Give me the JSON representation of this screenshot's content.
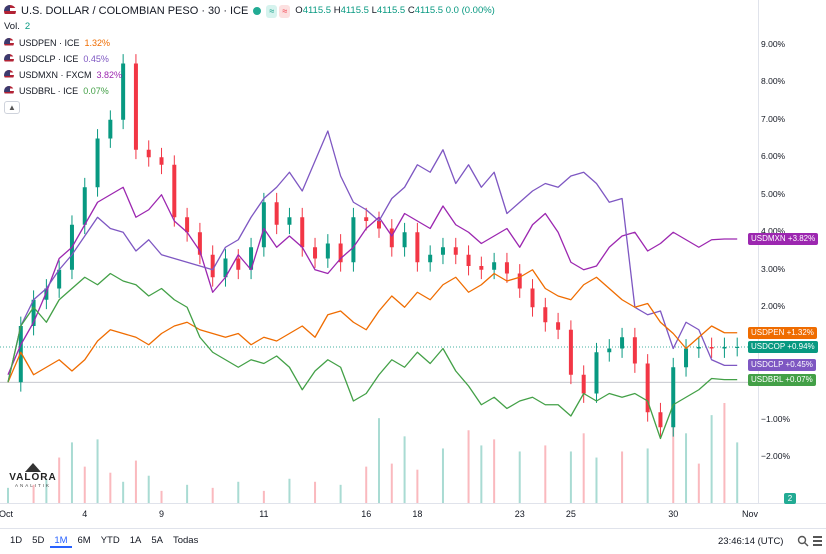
{
  "header": {
    "title": "U.S. DOLLAR / COLOMBIAN PESO · 30 · ICE",
    "ohlc": [
      {
        "k": "O",
        "v": "4115.5"
      },
      {
        "k": "H",
        "v": "4115.5"
      },
      {
        "k": "L",
        "v": "4115.5"
      },
      {
        "k": "C",
        "v": "4115.5"
      },
      {
        "k": "",
        "v": "0.0 (0.00%)"
      }
    ],
    "approx_symbol": "≈",
    "volume_label": "Vol.",
    "volume_value": "2"
  },
  "symbols": [
    {
      "label": "USDPEN · ICE",
      "change": "1.32%",
      "color": "#ef6c00"
    },
    {
      "label": "USDCLP · ICE",
      "change": "0.45%",
      "color": "#7e57c2"
    },
    {
      "label": "USDMXN · FXCM",
      "change": "3.82%",
      "color": "#9c27b0"
    },
    {
      "label": "USDBRL · ICE",
      "change": "0.07%",
      "color": "#43a047"
    }
  ],
  "icons": {
    "collapse": "chevron-up-icon",
    "search": "search-icon",
    "menu": "hamburger-menu-icon"
  },
  "logo": {
    "text": "VALORA",
    "sub": "ANALITIK"
  },
  "chart_data": {
    "type": "line",
    "title": "U.S. DOLLAR / COLOMBIAN PESO · 30 · ICE",
    "ylim": [
      -2.5,
      9.5
    ],
    "y_ticks": [
      "9.00%",
      "8.00%",
      "7.00%",
      "6.00%",
      "5.00%",
      "4.00%",
      "3.00%",
      "2.00%",
      "−1.00%",
      "−2.00%"
    ],
    "y_tick_values": [
      9,
      8,
      7,
      6,
      5,
      4,
      3,
      2,
      -1,
      -2
    ],
    "x_ticks": [
      {
        "label": "Oct",
        "t": 0
      },
      {
        "label": "4",
        "t": 3
      },
      {
        "label": "9",
        "t": 6
      },
      {
        "label": "11",
        "t": 10
      },
      {
        "label": "16",
        "t": 14
      },
      {
        "label": "18",
        "t": 16
      },
      {
        "label": "23",
        "t": 20
      },
      {
        "label": "25",
        "t": 22
      },
      {
        "label": "30",
        "t": 26
      },
      {
        "label": "Nov",
        "t": 29
      }
    ],
    "tmax": 29,
    "series": [
      {
        "name": "USDCOP",
        "color_up": "#089981",
        "color_down": "#f23645",
        "style": "candles",
        "last_label": "USDCOP",
        "last_value": "+0.94%",
        "x": [
          0,
          0.5,
          1,
          1.5,
          2,
          2.5,
          3,
          3.5,
          4,
          4.5,
          5,
          5.5,
          6,
          6.5,
          7,
          7.5,
          8,
          8.5,
          9,
          9.5,
          10,
          10.5,
          11,
          11.5,
          12,
          12.5,
          13,
          13.5,
          14,
          14.5,
          15,
          15.5,
          16,
          16.5,
          17,
          17.5,
          18,
          18.5,
          19,
          19.5,
          20,
          20.5,
          21,
          21.5,
          22,
          22.5,
          23,
          23.5,
          24,
          24.5,
          25,
          25.5,
          26,
          26.5,
          27,
          27.5,
          28,
          28.5
        ],
        "y": [
          0,
          1.5,
          2.2,
          2.5,
          3.0,
          4.2,
          5.2,
          6.5,
          7.0,
          8.5,
          6.2,
          6.0,
          5.8,
          4.4,
          4.0,
          3.4,
          2.8,
          3.3,
          3.0,
          3.6,
          4.8,
          4.2,
          4.4,
          3.6,
          3.3,
          3.7,
          3.2,
          4.4,
          4.3,
          4.1,
          3.6,
          4.0,
          3.2,
          3.4,
          3.6,
          3.4,
          3.1,
          3.0,
          3.2,
          2.9,
          2.5,
          2.0,
          1.6,
          1.4,
          0.2,
          -0.3,
          0.8,
          0.9,
          1.2,
          0.5,
          -0.8,
          -1.2,
          0.4,
          0.9,
          0.94,
          0.9,
          0.94,
          0.94
        ]
      },
      {
        "name": "USDMXN",
        "color": "#9c27b0",
        "last_label": "USDMXN",
        "last_value": "+3.82%",
        "x": [
          0,
          0.5,
          1,
          1.5,
          2,
          2.5,
          3,
          3.5,
          4,
          4.5,
          5,
          5.5,
          6,
          6.5,
          7,
          7.5,
          8,
          8.5,
          9,
          9.5,
          10,
          10.5,
          11,
          11.5,
          12,
          12.5,
          13,
          13.5,
          14,
          14.5,
          15,
          15.5,
          16,
          16.5,
          17,
          17.5,
          18,
          18.5,
          19,
          19.5,
          20,
          20.5,
          21,
          21.5,
          22,
          22.5,
          23,
          23.5,
          24,
          24.5,
          25,
          25.5,
          26,
          26.5,
          27,
          27.5,
          28,
          28.5
        ],
        "y": [
          0.2,
          1.0,
          1.6,
          2.4,
          3.3,
          3.6,
          4.2,
          4.8,
          5.0,
          5.2,
          4.4,
          4.6,
          5.0,
          4.3,
          4.0,
          3.5,
          2.4,
          2.8,
          3.4,
          3.0,
          4.1,
          3.6,
          3.9,
          3.6,
          3.0,
          2.9,
          3.3,
          3.6,
          4.1,
          4.4,
          3.9,
          4.5,
          4.3,
          4.1,
          4.7,
          4.2,
          4.0,
          3.7,
          3.9,
          4.1,
          3.6,
          4.2,
          4.5,
          4.0,
          3.2,
          3.0,
          3.1,
          3.6,
          3.9,
          4.0,
          3.5,
          3.7,
          4.0,
          3.8,
          3.6,
          3.8,
          3.82,
          3.82
        ]
      },
      {
        "name": "USDCLP",
        "color": "#7e57c2",
        "last_label": "USDCLP",
        "last_value": "+0.45%",
        "x": [
          0,
          0.5,
          1,
          1.5,
          2,
          2.5,
          3,
          3.5,
          4,
          4.5,
          5,
          5.5,
          6,
          6.5,
          7,
          7.5,
          8,
          8.5,
          9,
          9.5,
          10,
          10.5,
          11,
          11.5,
          12,
          12.5,
          13,
          13.5,
          14,
          14.5,
          15,
          15.5,
          16,
          16.5,
          17,
          17.5,
          18,
          18.5,
          19,
          19.5,
          20,
          20.5,
          21,
          21.5,
          22,
          22.5,
          23,
          23.5,
          24,
          24.5,
          25,
          25.5,
          26,
          26.5,
          27,
          27.5,
          28,
          28.5
        ],
        "y": [
          0,
          1.5,
          2.2,
          2.5,
          3.0,
          3.4,
          3.9,
          4.4,
          4.1,
          4.0,
          3.5,
          3.8,
          3.4,
          3.3,
          3.2,
          3.1,
          3.0,
          3.6,
          3.8,
          4.4,
          4.9,
          5.2,
          5.6,
          5.1,
          5.9,
          6.7,
          5.5,
          4.8,
          4.6,
          4.3,
          4.9,
          5.2,
          5.8,
          5.6,
          6.2,
          5.3,
          5.8,
          5.2,
          5.6,
          4.5,
          4.8,
          5.1,
          5.3,
          5.2,
          5.5,
          5.6,
          5.3,
          4.8,
          4.9,
          2.0,
          1.8,
          1.9,
          0.9,
          1.6,
          1.4,
          0.6,
          0.45,
          0.45
        ]
      },
      {
        "name": "USDPEN",
        "color": "#ef6c00",
        "last_label": "USDPEN",
        "last_value": "+1.32%",
        "x": [
          0,
          0.5,
          1,
          1.5,
          2,
          2.5,
          3,
          3.5,
          4,
          4.5,
          5,
          5.5,
          6,
          6.5,
          7,
          7.5,
          8,
          8.5,
          9,
          9.5,
          10,
          10.5,
          11,
          11.5,
          12,
          12.5,
          13,
          13.5,
          14,
          14.5,
          15,
          15.5,
          16,
          16.5,
          17,
          17.5,
          18,
          18.5,
          19,
          19.5,
          20,
          20.5,
          21,
          21.5,
          22,
          22.5,
          23,
          23.5,
          24,
          24.5,
          25,
          25.5,
          26,
          26.5,
          27,
          27.5,
          28,
          28.5
        ],
        "y": [
          0,
          0.8,
          0.2,
          0.4,
          0.6,
          0.3,
          0.6,
          1.1,
          1.4,
          1.3,
          1.2,
          1.0,
          1.3,
          1.5,
          1.6,
          1.4,
          1.3,
          1.2,
          1.3,
          1.0,
          1.2,
          1.1,
          1.3,
          1.5,
          1.2,
          1.8,
          1.9,
          1.6,
          1.4,
          1.9,
          2.3,
          2.0,
          2.4,
          2.2,
          2.6,
          2.8,
          2.4,
          2.6,
          2.9,
          2.7,
          2.8,
          3.0,
          2.5,
          2.3,
          2.2,
          2.6,
          2.8,
          2.5,
          2.2,
          2.0,
          2.1,
          1.6,
          1.3,
          0.9,
          1.2,
          1.5,
          1.32,
          1.32
        ]
      },
      {
        "name": "USDBRL",
        "color": "#43a047",
        "last_label": "USDBRL",
        "last_value": "+0.07%",
        "x": [
          0,
          0.5,
          1,
          1.5,
          2,
          2.5,
          3,
          3.5,
          4,
          4.5,
          5,
          5.5,
          6,
          6.5,
          7,
          7.5,
          8,
          8.5,
          9,
          9.5,
          10,
          10.5,
          11,
          11.5,
          12,
          12.5,
          13,
          13.5,
          14,
          14.5,
          15,
          15.5,
          16,
          16.5,
          17,
          17.5,
          18,
          18.5,
          19,
          19.5,
          20,
          20.5,
          21,
          21.5,
          22,
          22.5,
          23,
          23.5,
          24,
          24.5,
          25,
          25.5,
          26,
          26.5,
          27,
          27.5,
          28,
          28.5
        ],
        "y": [
          0,
          1.5,
          2.0,
          1.6,
          2.2,
          2.5,
          2.8,
          2.6,
          2.9,
          2.7,
          2.6,
          2.3,
          2.5,
          2.2,
          2.0,
          1.2,
          0.8,
          0.6,
          0.4,
          0.6,
          0.5,
          0.7,
          0.4,
          -0.2,
          0.3,
          0.6,
          0.4,
          -0.5,
          -0.3,
          0.2,
          0.6,
          0.4,
          0.8,
          0.5,
          0.9,
          0.3,
          -0.1,
          -0.6,
          -0.4,
          -0.7,
          -0.5,
          -0.4,
          -0.6,
          -0.6,
          -0.9,
          -0.3,
          -0.5,
          -0.3,
          -0.4,
          -0.3,
          -0.5,
          -1.5,
          -0.6,
          -0.4,
          -0.2,
          0.1,
          0.07,
          0.07
        ]
      }
    ],
    "volume": {
      "x": [
        0,
        1,
        1.5,
        2,
        2.5,
        3,
        3.5,
        4,
        4.5,
        5,
        5.5,
        6,
        7,
        8,
        9,
        10,
        11,
        12,
        13,
        14,
        14.5,
        15,
        15.5,
        16,
        17,
        18,
        18.5,
        19,
        20,
        21,
        22,
        22.5,
        23,
        24,
        25,
        26,
        26.5,
        27,
        27.5,
        28,
        28.5
      ],
      "v": [
        0.5,
        0.6,
        0.8,
        1.5,
        2.0,
        1.2,
        2.1,
        1.0,
        0.7,
        1.4,
        0.9,
        0.4,
        0.6,
        0.5,
        0.7,
        0.4,
        0.8,
        0.7,
        0.6,
        1.2,
        2.8,
        1.3,
        2.2,
        1.1,
        1.8,
        2.4,
        1.9,
        2.1,
        1.7,
        1.9,
        1.7,
        2.3,
        1.5,
        1.7,
        1.8,
        2.6,
        2.3,
        1.3,
        2.9,
        3.3,
        2.0
      ]
    },
    "grid": false,
    "legend": "top-left"
  },
  "timeframes": [
    "1D",
    "5D",
    "1M",
    "6M",
    "YTD",
    "1A",
    "5A",
    "Todas"
  ],
  "active_timeframe": "1M",
  "clock": "23:46:14 (UTC)",
  "volume_tag": "2"
}
